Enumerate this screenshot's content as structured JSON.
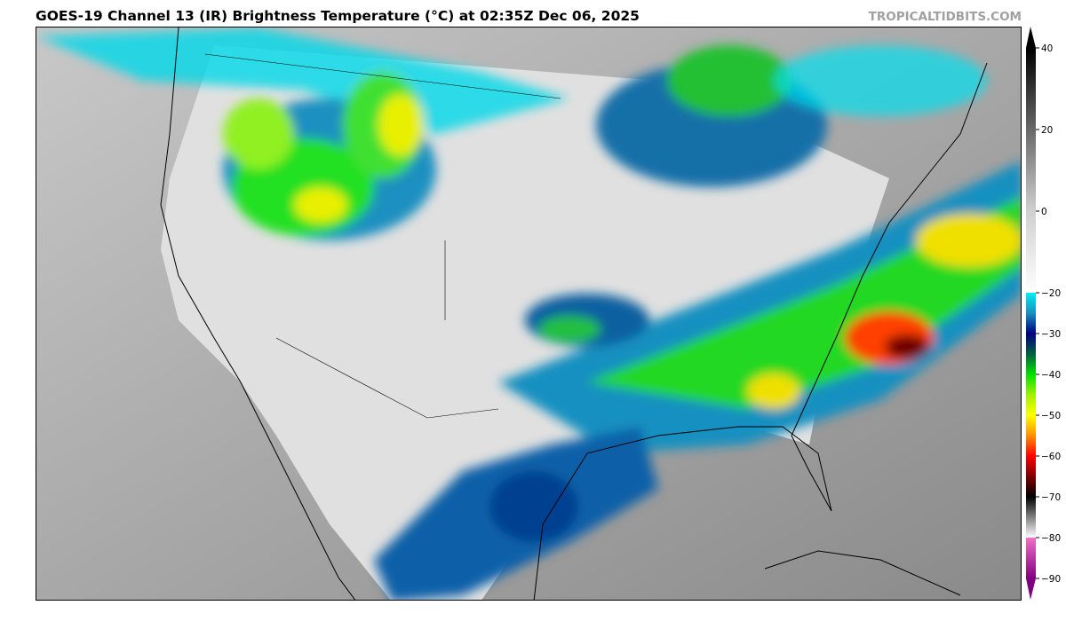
{
  "header": {
    "title": "GOES-19 Channel 13 (IR) Brightness Temperature (°C) at 02:35Z Dec 06, 2025",
    "brand": "TROPICALTIDBITS.COM"
  },
  "map": {
    "product": "GOES-19 Channel 13 (IR)",
    "region": "Continental United States, Mexico, Gulf of Mexico, Caribbean"
  },
  "colorbar": {
    "unit": "°C",
    "range": [
      -90,
      40
    ],
    "extend": "both",
    "ticks": [
      "40",
      "20",
      "0",
      "−20",
      "−30",
      "−40",
      "−50",
      "−60",
      "−70",
      "−80",
      "−90"
    ],
    "tick_values": [
      40,
      20,
      0,
      -20,
      -30,
      -40,
      -50,
      -60,
      -70,
      -80,
      -90
    ],
    "stops": [
      {
        "v": 40,
        "c": "#000000"
      },
      {
        "v": 0,
        "c": "#d0d0d0"
      },
      {
        "v": -20,
        "c": "#ffffff"
      },
      {
        "v": -20,
        "c": "#00f0f0"
      },
      {
        "v": -25,
        "c": "#1890c0"
      },
      {
        "v": -30,
        "c": "#000080"
      },
      {
        "v": -35,
        "c": "#006040"
      },
      {
        "v": -40,
        "c": "#00e000"
      },
      {
        "v": -45,
        "c": "#a0f000"
      },
      {
        "v": -50,
        "c": "#ffff00"
      },
      {
        "v": -55,
        "c": "#ff9000"
      },
      {
        "v": -60,
        "c": "#ff0000"
      },
      {
        "v": -65,
        "c": "#800000"
      },
      {
        "v": -70,
        "c": "#000000"
      },
      {
        "v": -75,
        "c": "#808080"
      },
      {
        "v": -80,
        "c": "#ffffff"
      },
      {
        "v": -80,
        "c": "#f070c8"
      },
      {
        "v": -90,
        "c": "#800080"
      }
    ]
  }
}
